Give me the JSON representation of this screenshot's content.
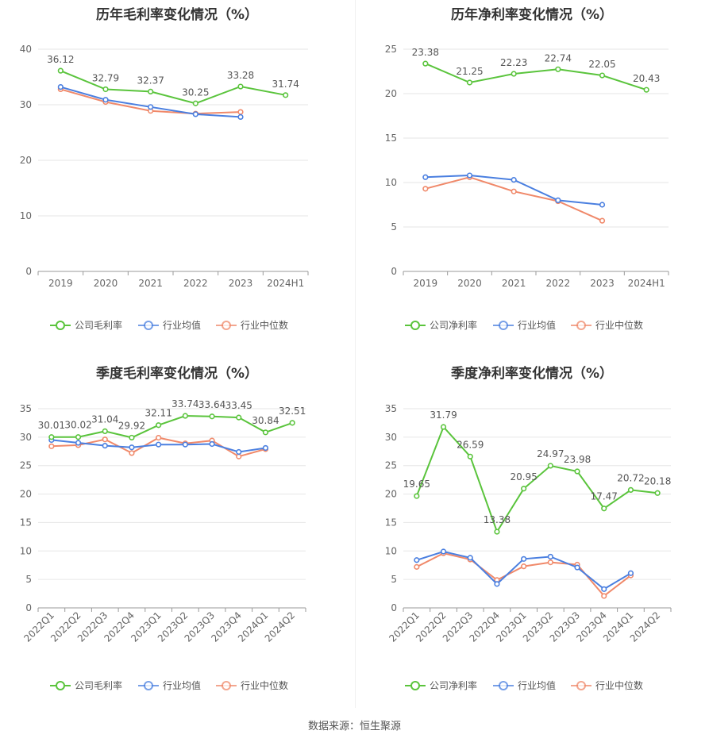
{
  "source_note": "数据来源：恒生聚源",
  "colors": {
    "company": "#5ac43c",
    "avg": "#4a7fe0",
    "median": "#f0896a",
    "grid": "#e6e6e6",
    "axis": "#999999"
  },
  "chart_data": [
    {
      "type": "line",
      "title": "历年毛利率变化情况（%）",
      "categories": [
        "2019",
        "2020",
        "2021",
        "2022",
        "2023",
        "2024H1"
      ],
      "ylim": [
        0,
        40
      ],
      "yticks": [
        0,
        10,
        20,
        30,
        40
      ],
      "grid": true,
      "legend_position": "bottom",
      "series": [
        {
          "name": "公司毛利率",
          "values": [
            36.12,
            32.79,
            32.37,
            30.25,
            33.28,
            31.74
          ],
          "labels": true
        },
        {
          "name": "行业均值",
          "values": [
            33.2,
            30.9,
            29.6,
            28.3,
            27.8,
            null
          ]
        },
        {
          "name": "行业中位数",
          "values": [
            32.8,
            30.5,
            28.9,
            28.4,
            28.7,
            null
          ]
        }
      ]
    },
    {
      "type": "line",
      "title": "历年净利率变化情况（%）",
      "categories": [
        "2019",
        "2020",
        "2021",
        "2022",
        "2023",
        "2024H1"
      ],
      "ylim": [
        0,
        25
      ],
      "yticks": [
        0,
        5,
        10,
        15,
        20,
        25
      ],
      "grid": true,
      "legend_position": "bottom",
      "series": [
        {
          "name": "公司净利率",
          "values": [
            23.38,
            21.25,
            22.23,
            22.74,
            22.05,
            20.43
          ],
          "labels": true
        },
        {
          "name": "行业均值",
          "values": [
            10.6,
            10.8,
            10.3,
            8.0,
            7.5,
            null
          ]
        },
        {
          "name": "行业中位数",
          "values": [
            9.3,
            10.6,
            9.0,
            7.9,
            5.7,
            null
          ]
        }
      ]
    },
    {
      "type": "line",
      "title": "季度毛利率变化情况（%）",
      "categories": [
        "2022Q1",
        "2022Q2",
        "2022Q3",
        "2022Q4",
        "2023Q1",
        "2023Q2",
        "2023Q3",
        "2023Q4",
        "2024Q1",
        "2024Q2"
      ],
      "ylim": [
        0,
        35
      ],
      "yticks": [
        0,
        5,
        10,
        15,
        20,
        25,
        30,
        35
      ],
      "grid": true,
      "legend_position": "bottom",
      "series": [
        {
          "name": "公司毛利率",
          "values": [
            30.01,
            30.02,
            31.04,
            29.92,
            32.11,
            33.74,
            33.64,
            33.45,
            30.84,
            32.51
          ],
          "labels": true
        },
        {
          "name": "行业均值",
          "values": [
            29.5,
            29.0,
            28.5,
            28.2,
            28.7,
            28.7,
            28.8,
            27.4,
            28.1,
            null
          ]
        },
        {
          "name": "行业中位数",
          "values": [
            28.4,
            28.6,
            29.6,
            27.2,
            29.9,
            28.9,
            29.4,
            26.6,
            27.9,
            null
          ]
        }
      ]
    },
    {
      "type": "line",
      "title": "季度净利率变化情况（%）",
      "categories": [
        "2022Q1",
        "2022Q2",
        "2022Q3",
        "2022Q4",
        "2023Q1",
        "2023Q2",
        "2023Q3",
        "2023Q4",
        "2024Q1",
        "2024Q2"
      ],
      "ylim": [
        0,
        35
      ],
      "yticks": [
        0,
        5,
        10,
        15,
        20,
        25,
        30,
        35
      ],
      "grid": true,
      "legend_position": "bottom",
      "series": [
        {
          "name": "公司净利率",
          "values": [
            19.65,
            31.79,
            26.59,
            13.38,
            20.95,
            24.97,
            23.98,
            17.47,
            20.72,
            20.18
          ],
          "labels": true
        },
        {
          "name": "行业均值",
          "values": [
            8.4,
            9.9,
            8.8,
            4.2,
            8.6,
            9.0,
            7.1,
            3.3,
            6.1,
            null
          ]
        },
        {
          "name": "行业中位数",
          "values": [
            7.2,
            9.6,
            8.5,
            4.9,
            7.3,
            8.0,
            7.6,
            2.1,
            5.7,
            null
          ]
        }
      ]
    }
  ]
}
